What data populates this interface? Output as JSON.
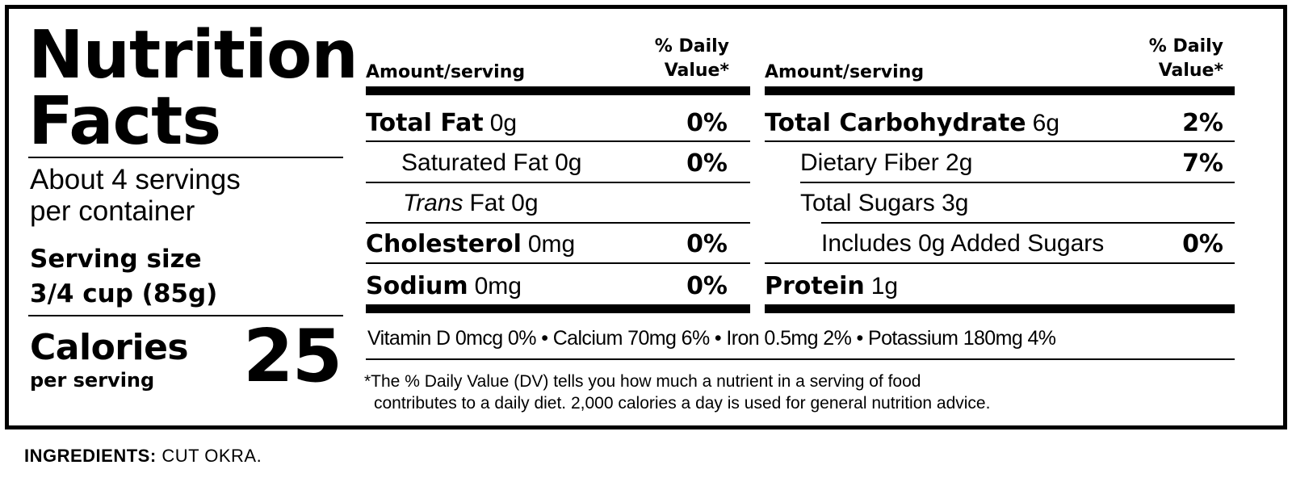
{
  "header": {
    "title_line1": "Nutrition",
    "title_line2": "Facts",
    "servings_line1": "About 4 servings",
    "servings_line2": "per container",
    "serving_size_label": "Serving size",
    "serving_size_value": "3/4 cup (85g)",
    "calories_label": "Calories",
    "calories_sub": "per serving",
    "calories_value": "25"
  },
  "columns": {
    "amount_label": "Amount/serving",
    "dv_label_line1": "% Daily",
    "dv_label_line2": "Value*"
  },
  "left_nutrients": [
    {
      "name": "Total Fat",
      "amount": "0g",
      "dv": "0%"
    },
    {
      "name": "Saturated Fat 0g",
      "amount": "",
      "dv": "0%"
    },
    {
      "name": "Trans",
      "amount": "Fat 0g",
      "dv": ""
    },
    {
      "name": "Cholesterol",
      "amount": "0mg",
      "dv": "0%"
    },
    {
      "name": "Sodium",
      "amount": "0mg",
      "dv": "0%"
    }
  ],
  "right_nutrients": [
    {
      "name": "Total Carbohydrate",
      "amount": "6g",
      "dv": "2%"
    },
    {
      "name": "Dietary Fiber 2g",
      "amount": "",
      "dv": "7%"
    },
    {
      "name": "Total Sugars 3g",
      "amount": "",
      "dv": ""
    },
    {
      "name": "Includes 0g Added Sugars",
      "amount": "",
      "dv": "0%"
    },
    {
      "name": "Protein",
      "amount": "1g",
      "dv": ""
    }
  ],
  "vitamins": "Vitamin D 0mcg 0%  •  Calcium 70mg 6%  •  Iron 0.5mg 2%  •  Potassium 180mg 4%",
  "footnote_line1": "*The % Daily Value (DV) tells you how much a nutrient in a serving of food",
  "footnote_line2": "contributes to a daily diet. 2,000 calories a day is used for general nutrition advice.",
  "ingredients": {
    "label": "INGREDIENTS:",
    "text": "CUT OKRA."
  }
}
